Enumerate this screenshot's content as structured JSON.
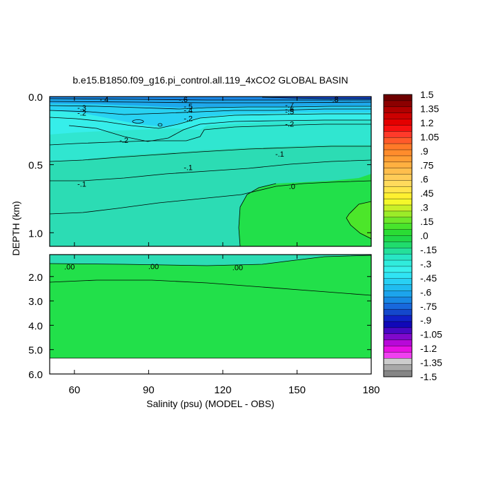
{
  "chart_data": {
    "type": "contour",
    "title": "b.e15.B1850.f09_g16.pi_control.all.119_4xCO2 GLOBAL BASIN",
    "xlabel": "Salinity (psu) (MODEL - OBS)",
    "ylabel": "DEPTH (km)",
    "xlim": [
      50,
      180
    ],
    "x_ticks": [
      "60",
      "90",
      "120",
      "150",
      "180"
    ],
    "x_tick_values": [
      60,
      90,
      120,
      150,
      180
    ],
    "upper_panel": {
      "ylim": [
        0.0,
        1.1
      ],
      "y_ticks": [
        "0.0",
        "0.5",
        "1.0"
      ],
      "y_tick_values": [
        0.0,
        0.5,
        1.0
      ]
    },
    "lower_panel": {
      "ylim": [
        1.1,
        6.0
      ],
      "y_ticks": [
        "2.0",
        "3.0",
        "4.0",
        "5.0",
        "6.0"
      ],
      "y_tick_values": [
        2.0,
        3.0,
        4.0,
        5.0,
        6.0
      ],
      "data_bottom_depth": 5.35
    },
    "contour_labels": [
      {
        "text": "-.4",
        "x": 72,
        "y": 0.02
      },
      {
        "text": "-.6",
        "x": 104,
        "y": 0.02
      },
      {
        "text": "-.8",
        "x": 165,
        "y": 0.02
      },
      {
        "text": "-.3",
        "x": 63,
        "y": 0.08
      },
      {
        "text": "-.2",
        "x": 63,
        "y": 0.12
      },
      {
        "text": "-.5",
        "x": 106,
        "y": 0.07
      },
      {
        "text": "-.4",
        "x": 106,
        "y": 0.1
      },
      {
        "text": "-.2",
        "x": 106,
        "y": 0.16
      },
      {
        "text": "-.7",
        "x": 147,
        "y": 0.06
      },
      {
        "text": "-.6",
        "x": 147,
        "y": 0.09
      },
      {
        "text": "-.5",
        "x": 147,
        "y": 0.11
      },
      {
        "text": "-.2",
        "x": 147,
        "y": 0.2
      },
      {
        "text": "-.2",
        "x": 80,
        "y": 0.32
      },
      {
        "text": "-.1",
        "x": 143,
        "y": 0.42
      },
      {
        "text": "-.1",
        "x": 106,
        "y": 0.52
      },
      {
        "text": "-.1",
        "x": 63,
        "y": 0.64
      },
      {
        "text": ".0",
        "x": 148,
        "y": 0.66
      },
      {
        "text": ".00",
        "x": 58,
        "y": 1.6
      },
      {
        "text": ".00",
        "x": 92,
        "y": 1.58
      },
      {
        "text": ".00",
        "x": 126,
        "y": 1.62
      }
    ],
    "colorbar": {
      "labels": [
        "1.5",
        "1.35",
        "1.2",
        "1.05",
        ".9",
        ".75",
        ".6",
        ".45",
        ".3",
        ".15",
        ".0",
        "-.15",
        "-.3",
        "-.45",
        "-.6",
        "-.75",
        "-.9",
        "-1.05",
        "-1.2",
        "-1.35",
        "-1.5"
      ],
      "values": [
        1.5,
        1.35,
        1.2,
        1.05,
        0.9,
        0.75,
        0.6,
        0.45,
        0.3,
        0.15,
        0.0,
        -0.15,
        -0.3,
        -0.45,
        -0.6,
        -0.75,
        -0.9,
        -1.05,
        -1.2,
        -1.35,
        -1.5
      ],
      "colors": [
        "#6e0000",
        "#8c0000",
        "#b00000",
        "#cc0000",
        "#e40000",
        "#f81010",
        "#ff3a2a",
        "#ff5a2a",
        "#ff7a28",
        "#ff8c2c",
        "#ff9e34",
        "#ffb040",
        "#ffbe4c",
        "#ffcc58",
        "#ffda5c",
        "#ffe44c",
        "#fff030",
        "#f4f82a",
        "#c8f028",
        "#9cec28",
        "#6ee82a",
        "#48e42c",
        "#2adc34",
        "#20d848",
        "#20dc6c",
        "#24e09a",
        "#28e6c4",
        "#30ecdc",
        "#38f0ec",
        "#30e4f4",
        "#28d0f4",
        "#20bcf0",
        "#1ca4ec",
        "#1888e4",
        "#1868dc",
        "#1448cc",
        "#1020c8",
        "#1008b8",
        "#4808c4",
        "#8008cc",
        "#b808d8",
        "#e810e4",
        "#f040f0",
        "#cccccc",
        "#a8a8a8",
        "#868686"
      ]
    }
  }
}
